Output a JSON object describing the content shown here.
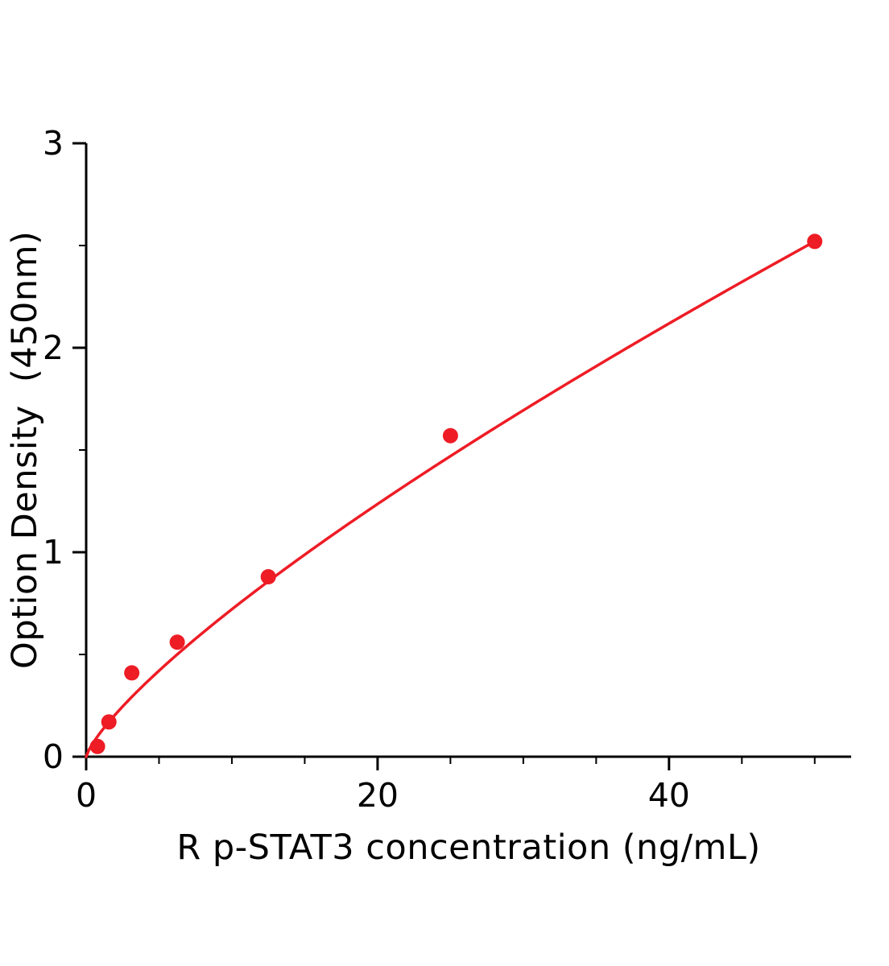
{
  "chart_data": {
    "type": "scatter",
    "title": "",
    "xlabel": "R p-STAT3 concentration (ng/mL)",
    "ylabel": "Option Density  (450nm)",
    "x": [
      0.78,
      1.56,
      3.13,
      6.25,
      12.5,
      25,
      50
    ],
    "y": [
      0.05,
      0.17,
      0.41,
      0.56,
      0.88,
      1.57,
      2.52
    ],
    "fit_curve": "power",
    "xlim": [
      0,
      52.5
    ],
    "ylim": [
      0,
      3
    ],
    "x_major_ticks": [
      0,
      20,
      40
    ],
    "x_minor_tick_step": 5,
    "y_major_ticks": [
      0,
      1,
      2,
      3
    ],
    "y_minor_tick_step": 0.5,
    "grid": false,
    "legend_position": "none",
    "point_color": "#ee1c25",
    "line_color": "#ee1c25",
    "axis_color": "#000000",
    "background_color": "#ffffff"
  }
}
